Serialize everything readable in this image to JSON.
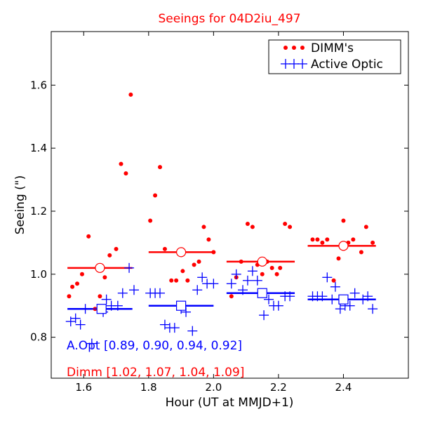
{
  "chart_data": {
    "type": "scatter",
    "title": "Seeings for 04D2iu_497",
    "xlabel": "Hour (UT at MMJD+1)",
    "ylabel": "Seeing (\")",
    "xlim": [
      1.5,
      2.6
    ],
    "ylim": [
      0.67,
      1.77
    ],
    "xticks": [
      1.6,
      1.8,
      2.0,
      2.2,
      2.4
    ],
    "xtick_labels": [
      "1.6",
      "1.8",
      "2.0",
      "2.2",
      "2.4"
    ],
    "yticks": [
      0.8,
      1.0,
      1.2,
      1.4,
      1.6
    ],
    "ytick_labels": [
      "0.8",
      "1.0",
      "1.2",
      "1.4",
      "1.6"
    ],
    "grid": false,
    "legend_position": "top-right",
    "colors": {
      "dimm": "#ff0000",
      "aopt": "#0000ff",
      "axis": "#000000"
    },
    "series": [
      {
        "name": "DIMM's",
        "marker": "dot",
        "color": "#ff0000",
        "points": [
          [
            1.555,
            0.93
          ],
          [
            1.565,
            0.96
          ],
          [
            1.58,
            0.97
          ],
          [
            1.595,
            1.0
          ],
          [
            1.615,
            1.12
          ],
          [
            1.635,
            0.89
          ],
          [
            1.65,
            0.93
          ],
          [
            1.665,
            0.99
          ],
          [
            1.68,
            1.06
          ],
          [
            1.7,
            1.08
          ],
          [
            1.715,
            1.35
          ],
          [
            1.73,
            1.32
          ],
          [
            1.745,
            1.57
          ],
          [
            1.805,
            1.17
          ],
          [
            1.82,
            1.25
          ],
          [
            1.835,
            1.34
          ],
          [
            1.85,
            1.08
          ],
          [
            1.87,
            0.98
          ],
          [
            1.885,
            0.98
          ],
          [
            1.905,
            1.01
          ],
          [
            1.92,
            0.98
          ],
          [
            1.94,
            1.03
          ],
          [
            1.955,
            1.04
          ],
          [
            1.97,
            1.15
          ],
          [
            1.985,
            1.11
          ],
          [
            2.0,
            1.07
          ],
          [
            2.055,
            0.93
          ],
          [
            2.07,
            0.99
          ],
          [
            2.085,
            1.04
          ],
          [
            2.105,
            1.16
          ],
          [
            2.12,
            1.15
          ],
          [
            2.135,
            1.03
          ],
          [
            2.15,
            1.0
          ],
          [
            2.165,
            1.04
          ],
          [
            2.18,
            1.02
          ],
          [
            2.195,
            1.0
          ],
          [
            2.205,
            1.02
          ],
          [
            2.22,
            1.16
          ],
          [
            2.235,
            1.15
          ],
          [
            2.305,
            1.11
          ],
          [
            2.32,
            1.11
          ],
          [
            2.335,
            1.1
          ],
          [
            2.35,
            1.11
          ],
          [
            2.37,
            0.98
          ],
          [
            2.385,
            1.05
          ],
          [
            2.4,
            1.17
          ],
          [
            2.415,
            1.1
          ],
          [
            2.43,
            1.11
          ],
          [
            2.455,
            1.07
          ],
          [
            2.47,
            1.15
          ],
          [
            2.49,
            1.1
          ]
        ]
      },
      {
        "name": "Active Optic",
        "marker": "plus",
        "color": "#0000ff",
        "points": [
          [
            1.56,
            0.85
          ],
          [
            1.575,
            0.86
          ],
          [
            1.59,
            0.84
          ],
          [
            1.605,
            0.89
          ],
          [
            1.625,
            0.78
          ],
          [
            1.645,
            0.89
          ],
          [
            1.66,
            0.88
          ],
          [
            1.67,
            0.92
          ],
          [
            1.685,
            0.9
          ],
          [
            1.705,
            0.9
          ],
          [
            1.72,
            0.94
          ],
          [
            1.74,
            1.02
          ],
          [
            1.755,
            0.95
          ],
          [
            1.805,
            0.94
          ],
          [
            1.82,
            0.94
          ],
          [
            1.835,
            0.94
          ],
          [
            1.85,
            0.84
          ],
          [
            1.865,
            0.83
          ],
          [
            1.88,
            0.83
          ],
          [
            1.9,
            0.89
          ],
          [
            1.915,
            0.88
          ],
          [
            1.935,
            0.82
          ],
          [
            1.95,
            0.95
          ],
          [
            1.965,
            0.99
          ],
          [
            1.98,
            0.97
          ],
          [
            2.0,
            0.97
          ],
          [
            2.055,
            0.97
          ],
          [
            2.07,
            1.0
          ],
          [
            2.09,
            0.95
          ],
          [
            2.105,
            0.98
          ],
          [
            2.12,
            1.01
          ],
          [
            2.135,
            0.98
          ],
          [
            2.155,
            0.87
          ],
          [
            2.17,
            0.92
          ],
          [
            2.185,
            0.9
          ],
          [
            2.2,
            0.9
          ],
          [
            2.22,
            0.93
          ],
          [
            2.235,
            0.93
          ],
          [
            2.305,
            0.93
          ],
          [
            2.32,
            0.93
          ],
          [
            2.335,
            0.93
          ],
          [
            2.35,
            0.99
          ],
          [
            2.365,
            0.92
          ],
          [
            2.375,
            0.96
          ],
          [
            2.39,
            0.89
          ],
          [
            2.405,
            0.9
          ],
          [
            2.42,
            0.9
          ],
          [
            2.435,
            0.94
          ],
          [
            2.46,
            0.92
          ],
          [
            2.475,
            0.93
          ],
          [
            2.49,
            0.89
          ]
        ]
      }
    ],
    "bin_averages": {
      "dimm": [
        {
          "x_range": [
            1.55,
            1.75
          ],
          "mean_x": 1.65,
          "value": 1.02
        },
        {
          "x_range": [
            1.8,
            2.0
          ],
          "mean_x": 1.9,
          "value": 1.07
        },
        {
          "x_range": [
            2.04,
            2.25
          ],
          "mean_x": 2.15,
          "value": 1.04
        },
        {
          "x_range": [
            2.29,
            2.5
          ],
          "mean_x": 2.4,
          "value": 1.09
        }
      ],
      "aopt": [
        {
          "x_range": [
            1.55,
            1.75
          ],
          "mean_x": 1.655,
          "value": 0.89
        },
        {
          "x_range": [
            1.8,
            2.0
          ],
          "mean_x": 1.9,
          "value": 0.9
        },
        {
          "x_range": [
            2.04,
            2.25
          ],
          "mean_x": 2.15,
          "value": 0.94
        },
        {
          "x_range": [
            2.29,
            2.5
          ],
          "mean_x": 2.4,
          "value": 0.92
        }
      ]
    },
    "annotations": {
      "aopt": "A.Opt [0.89, 0.90, 0.94, 0.92]",
      "dimm": "Dimm [1.02, 1.07, 1.04, 1.09]"
    }
  }
}
